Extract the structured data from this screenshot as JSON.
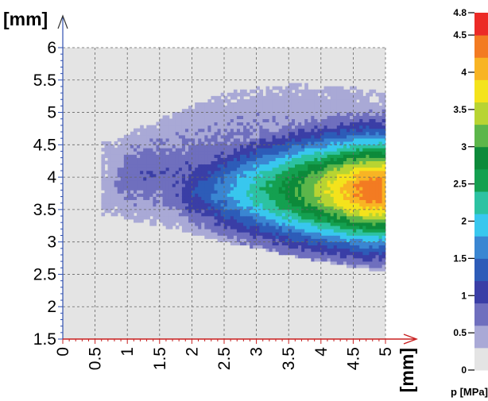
{
  "chart_data": {
    "type": "heatmap",
    "title": "",
    "xlabel": "[mm]",
    "ylabel": "[mm]",
    "xlim": [
      0,
      5
    ],
    "ylim": [
      1.5,
      6
    ],
    "x_ticks": [
      "0",
      "0.5",
      "1",
      "1.5",
      "2",
      "2.5",
      "3",
      "3.5",
      "4",
      "4.5",
      "5"
    ],
    "y_ticks": [
      "1.5",
      "2",
      "2.5",
      "3",
      "3.5",
      "4",
      "4.5",
      "5",
      "5.5",
      "6"
    ],
    "grid": true,
    "background_color": "#e4e4e4",
    "colorbar": {
      "title": "p [MPa]",
      "range": [
        0,
        4.8
      ],
      "tick_labels": [
        "0",
        "0.5",
        "1",
        "1.5",
        "2",
        "2.5",
        "3",
        "3.5",
        "4",
        "4.5",
        "4.8"
      ],
      "levels": [
        {
          "from": 0.0,
          "to": 0.3,
          "color": "#e4e4e4"
        },
        {
          "from": 0.3,
          "to": 0.6,
          "color": "#a9a9d6"
        },
        {
          "from": 0.6,
          "to": 0.9,
          "color": "#6f6fbe"
        },
        {
          "from": 0.9,
          "to": 1.2,
          "color": "#3a3ea6"
        },
        {
          "from": 1.2,
          "to": 1.5,
          "color": "#2d5cb8"
        },
        {
          "from": 1.5,
          "to": 1.8,
          "color": "#3a86d2"
        },
        {
          "from": 1.8,
          "to": 2.1,
          "color": "#38c7ee"
        },
        {
          "from": 2.1,
          "to": 2.4,
          "color": "#2cc2a2"
        },
        {
          "from": 2.4,
          "to": 2.7,
          "color": "#14a050"
        },
        {
          "from": 2.7,
          "to": 3.0,
          "color": "#0d8a3a"
        },
        {
          "from": 3.0,
          "to": 3.3,
          "color": "#5cb64a"
        },
        {
          "from": 3.3,
          "to": 3.6,
          "color": "#b8d432"
        },
        {
          "from": 3.6,
          "to": 3.9,
          "color": "#f4e31c"
        },
        {
          "from": 3.9,
          "to": 4.2,
          "color": "#f8b424"
        },
        {
          "from": 4.2,
          "to": 4.5,
          "color": "#f37b22"
        },
        {
          "from": 4.5,
          "to": 4.8,
          "color": "#ec2a26"
        }
      ]
    },
    "field": {
      "description_units": "pressure contours p(x, y) in MPa",
      "core_center": [
        4.3,
        3.8
      ],
      "peak_value": 4.4,
      "outer_boundary": {
        "left_x": 0.65,
        "top_y_at_x": [
          [
            0.7,
            4.55
          ],
          [
            1.5,
            4.9
          ],
          [
            2.5,
            5.3
          ],
          [
            3.5,
            5.45
          ],
          [
            4.5,
            5.38
          ],
          [
            5.0,
            5.3
          ]
        ],
        "bottom_y_at_x": [
          [
            0.7,
            3.4
          ],
          [
            1.5,
            3.25
          ],
          [
            2.5,
            3.0
          ],
          [
            3.5,
            2.8
          ],
          [
            4.5,
            2.6
          ],
          [
            5.0,
            2.55
          ]
        ]
      }
    },
    "arrow_color": "#c82020",
    "axis_colors": {
      "x_axis": "#c82020",
      "y_axis": "#3050b0"
    }
  }
}
